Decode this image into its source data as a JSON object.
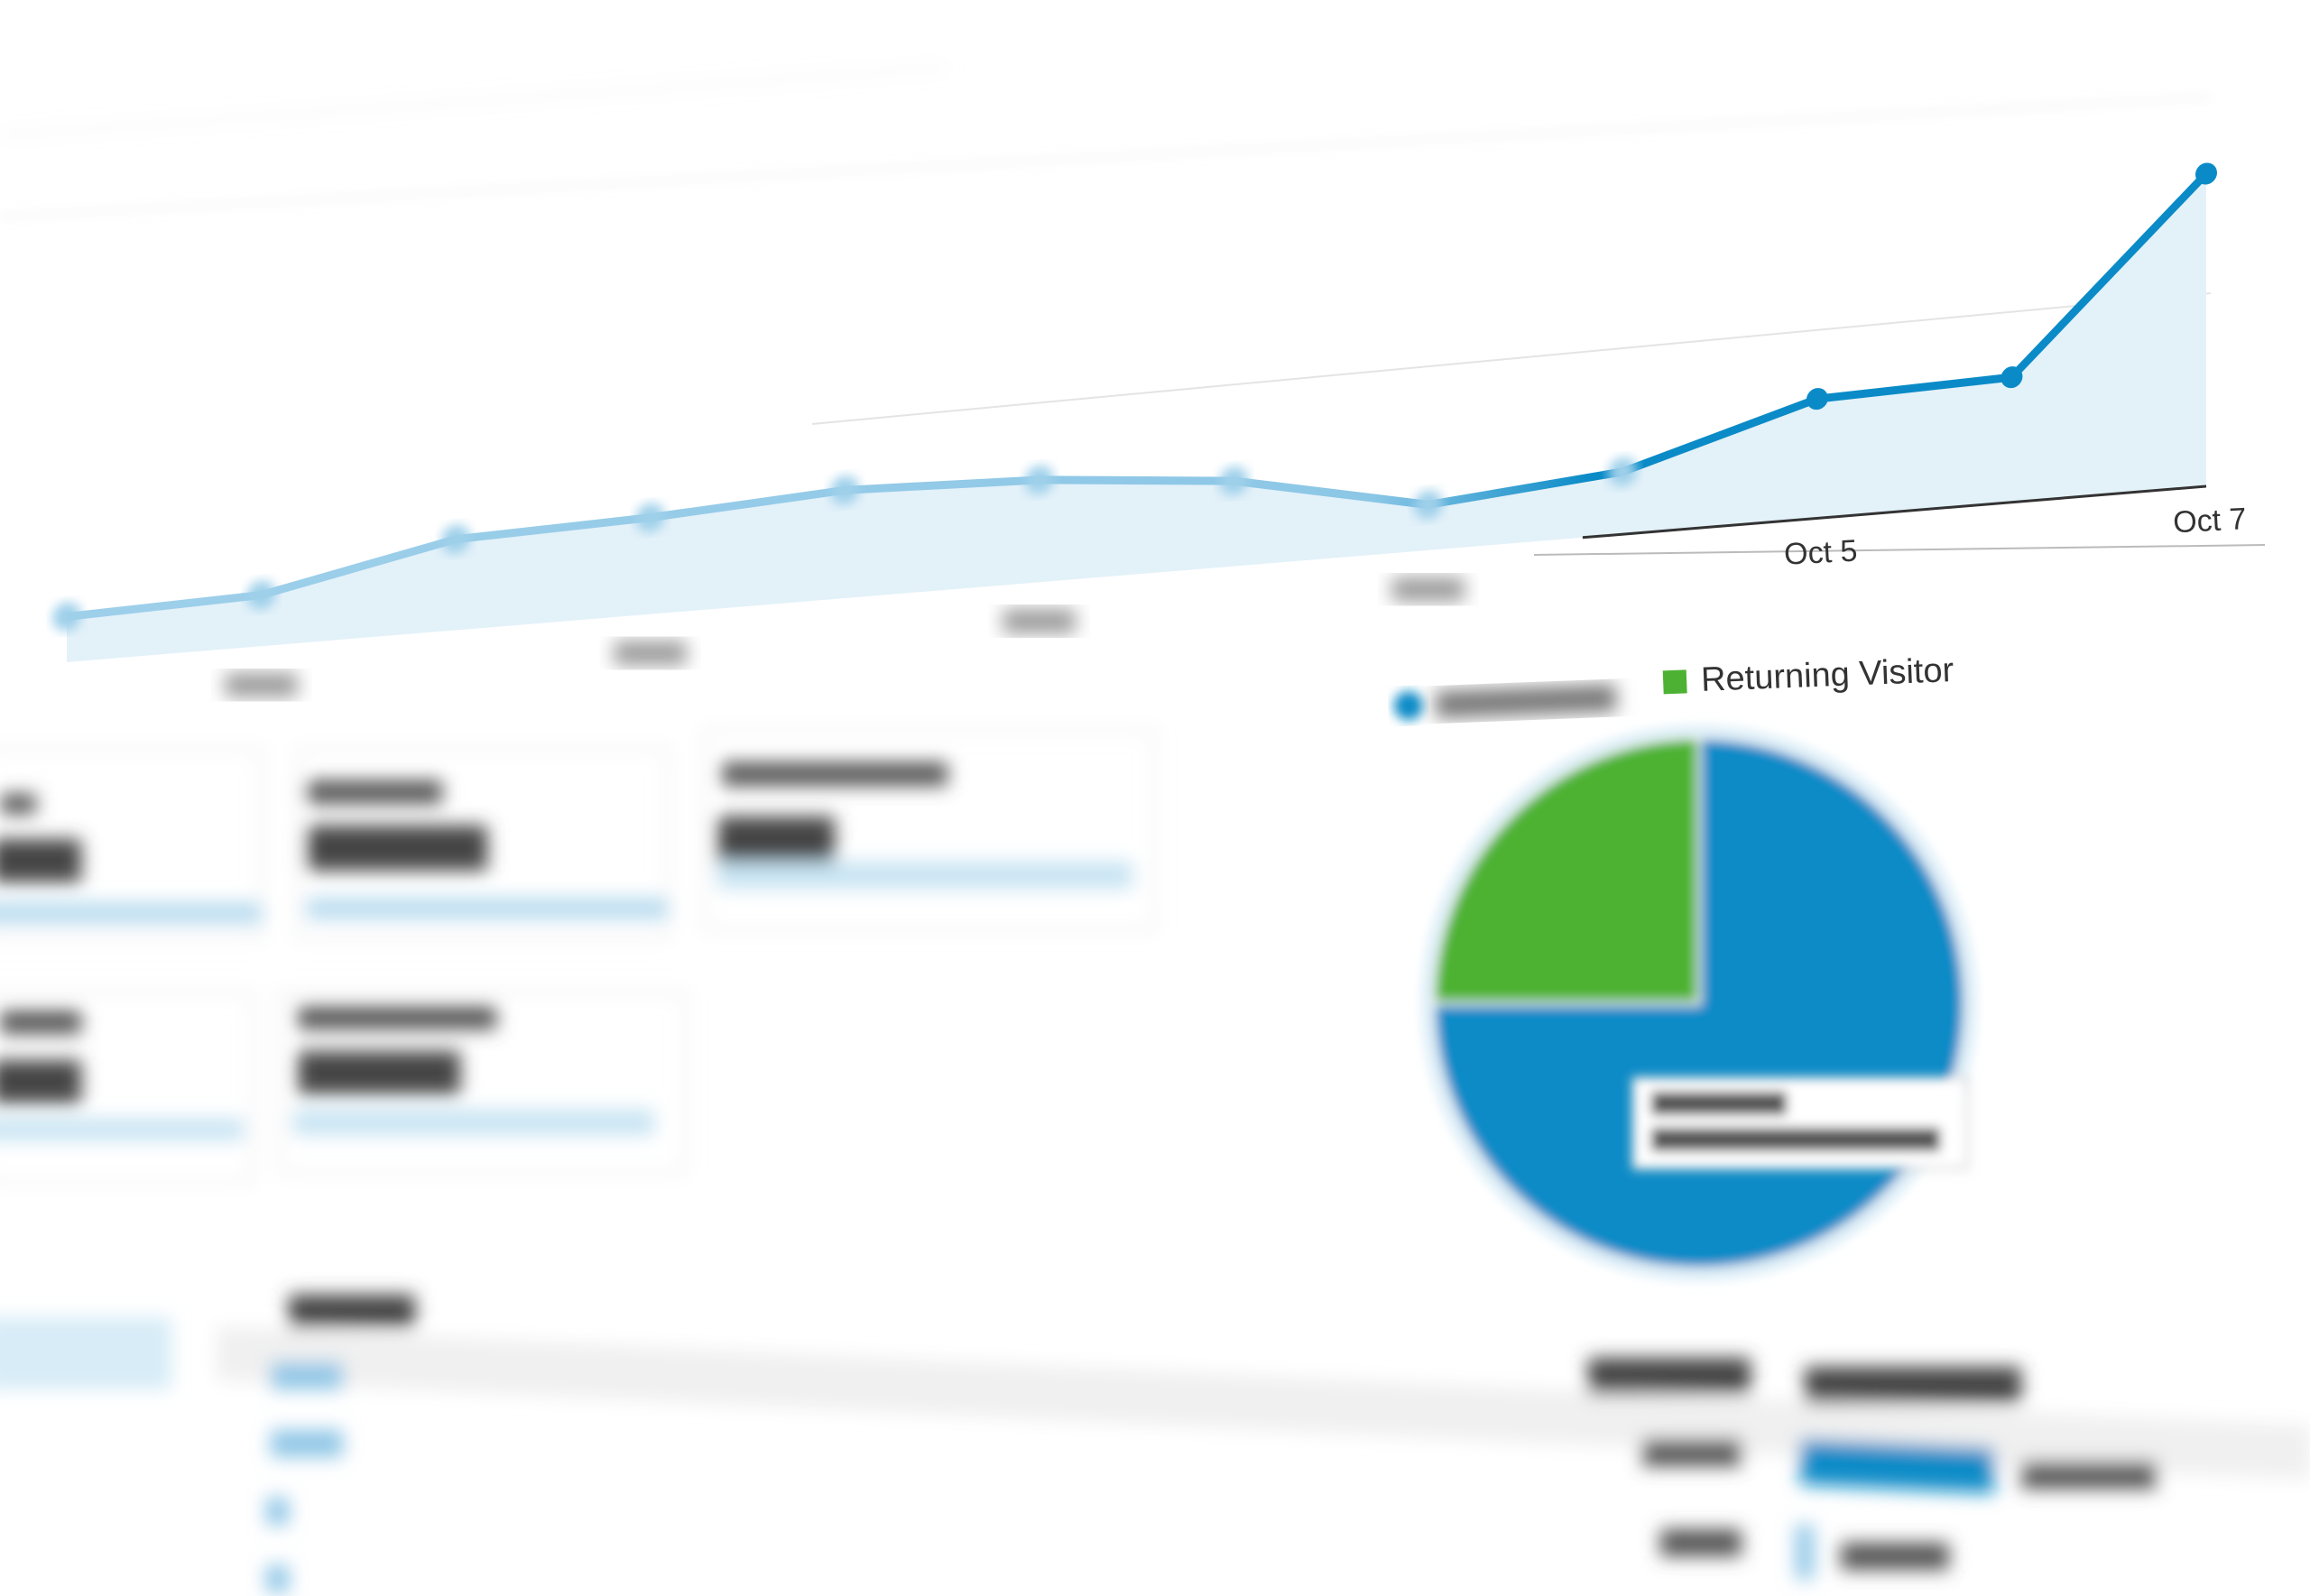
{
  "chart_data": [
    {
      "type": "line",
      "categories": [
        null,
        null,
        null,
        null,
        null,
        null,
        null,
        null,
        null,
        "Oct 5",
        null,
        "Oct 7"
      ],
      "series": [
        {
          "color": "#0a8bc7",
          "values": [
            8,
            9,
            16,
            17,
            19,
            18,
            15,
            8,
            11,
            21,
            22,
            55
          ]
        }
      ],
      "ylim": [
        0,
        60
      ]
    },
    {
      "type": "pie",
      "categories": [
        null,
        "Returning Visitor"
      ],
      "values": [
        75,
        25
      ],
      "colors": [
        "#0a8bc7",
        "#4db233"
      ]
    }
  ]
}
